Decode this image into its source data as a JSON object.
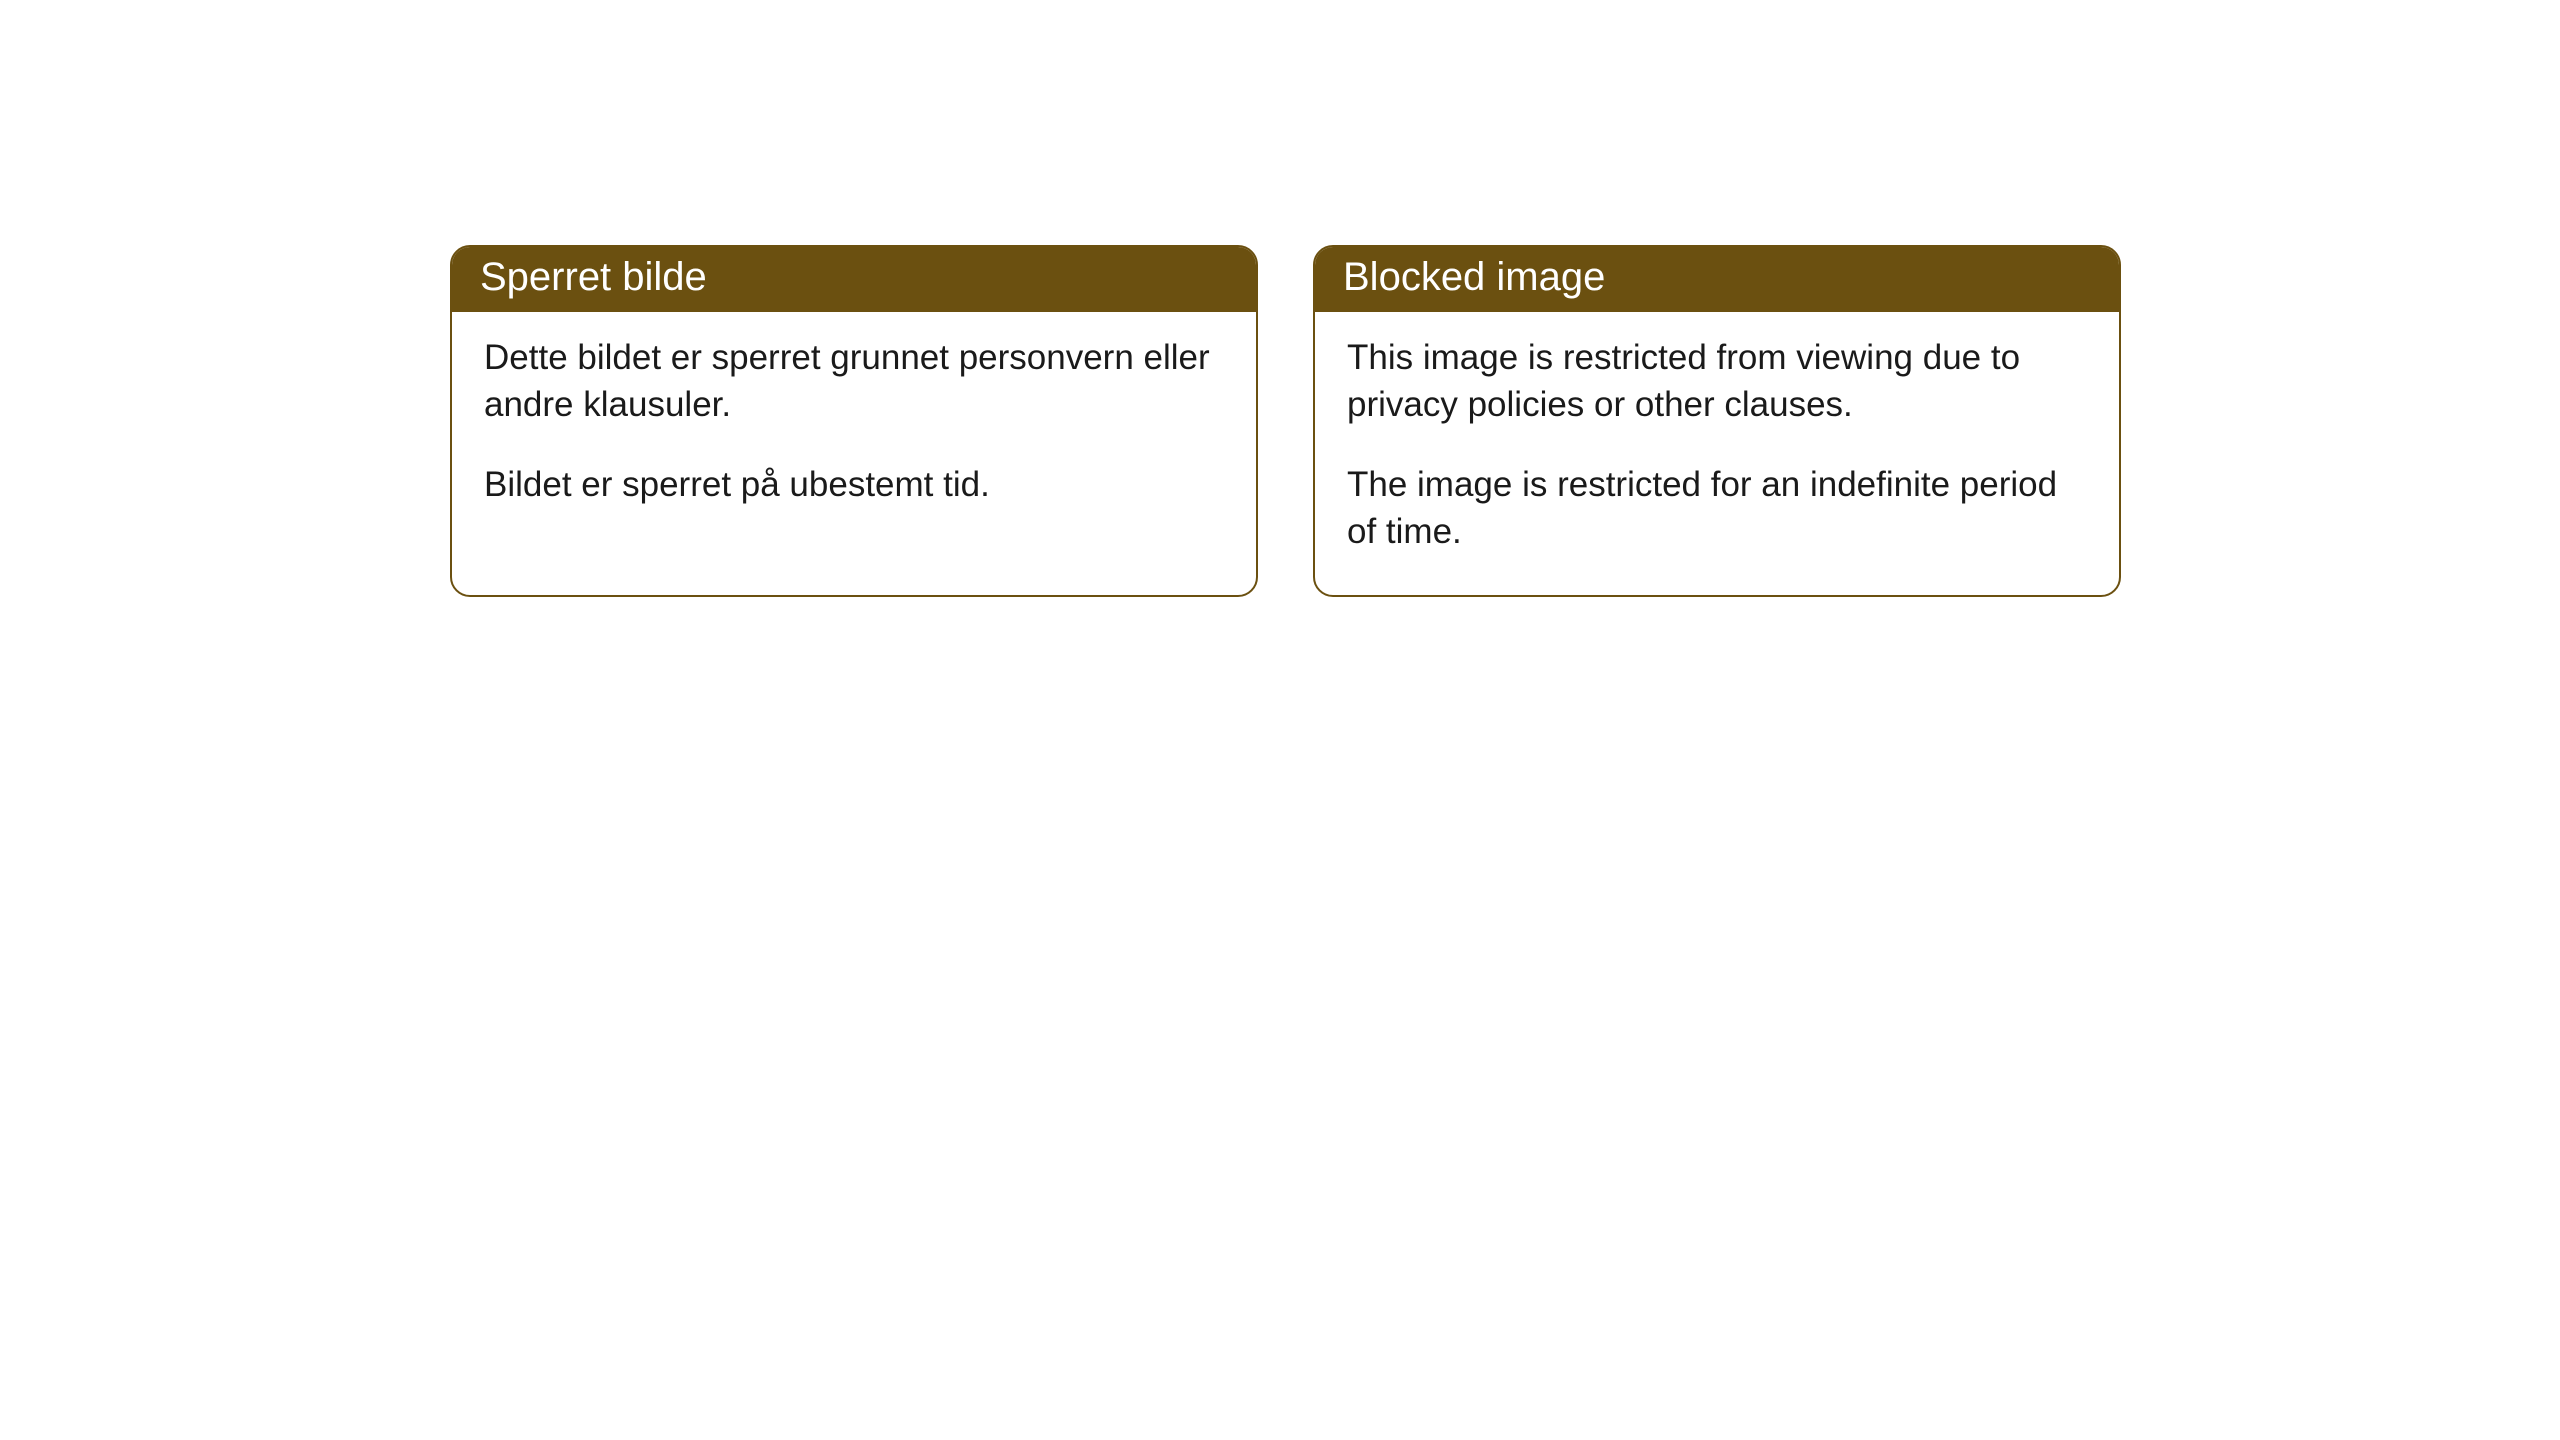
{
  "cards": [
    {
      "title": "Sperret bilde",
      "paragraph1": "Dette bildet er sperret grunnet personvern eller andre klausuler.",
      "paragraph2": "Bildet er sperret på ubestemt tid."
    },
    {
      "title": "Blocked image",
      "paragraph1": "This image is restricted from viewing due to privacy policies or other clauses.",
      "paragraph2": "The image is restricted for an indefinite period of time."
    }
  ],
  "styling": {
    "header_background": "#6b5010",
    "header_text_color": "#ffffff",
    "border_color": "#6b5010",
    "body_text_color": "#1a1a1a",
    "card_background": "#ffffff",
    "page_background": "#ffffff",
    "border_radius": 20,
    "header_fontsize": 40,
    "body_fontsize": 35
  }
}
